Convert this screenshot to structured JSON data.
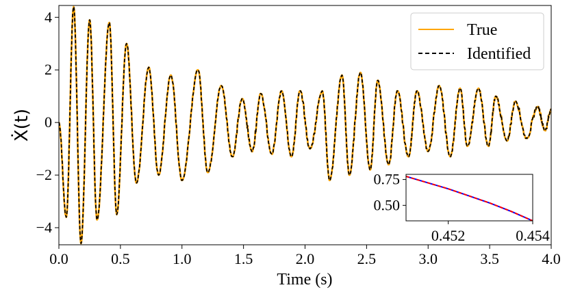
{
  "chart_data": {
    "type": "line",
    "title": "",
    "xlabel": "Time (s)",
    "ylabel": "Ẋ(t)",
    "xlim": [
      0.0,
      4.0
    ],
    "ylim": [
      -4.65,
      4.45
    ],
    "xticks": [
      0.0,
      0.5,
      1.0,
      1.5,
      2.0,
      2.5,
      3.0,
      3.5,
      4.0
    ],
    "xtick_labels": [
      "0.0",
      "0.5",
      "1.0",
      "1.5",
      "2.0",
      "2.5",
      "3.0",
      "3.5",
      "4.0"
    ],
    "yticks": [
      4,
      2,
      0,
      -2,
      -4
    ],
    "ytick_labels": [
      "4",
      "2",
      "0",
      "−2",
      "−4"
    ],
    "grid": false,
    "legend": {
      "placement": "top-right",
      "entries": [
        "True",
        "Identified"
      ]
    },
    "series": [
      {
        "name": "True",
        "color": "#ffa500",
        "style": "solid",
        "x": [
          0.0,
          0.06,
          0.12,
          0.18,
          0.25,
          0.31,
          0.41,
          0.47,
          0.55,
          0.63,
          0.73,
          0.81,
          0.91,
          1.0,
          1.13,
          1.21,
          1.32,
          1.41,
          1.49,
          1.57,
          1.64,
          1.73,
          1.81,
          1.89,
          1.96,
          2.04,
          2.14,
          2.2,
          2.3,
          2.36,
          2.45,
          2.53,
          2.59,
          2.68,
          2.75,
          2.84,
          2.91,
          3.0,
          3.09,
          3.18,
          3.26,
          3.32,
          3.41,
          3.49,
          3.55,
          3.64,
          3.71,
          3.8,
          3.89,
          3.95,
          4.0
        ],
        "y": [
          0.0,
          -3.6,
          4.4,
          -4.6,
          3.9,
          -3.7,
          3.8,
          -3.5,
          3.0,
          -2.3,
          2.1,
          -2.0,
          1.8,
          -2.2,
          2.0,
          -1.9,
          1.4,
          -1.3,
          0.9,
          -1.1,
          1.1,
          -1.2,
          1.2,
          -1.3,
          1.2,
          -1.0,
          1.2,
          -2.2,
          1.8,
          -2.0,
          1.9,
          -1.8,
          1.6,
          -1.6,
          1.2,
          -1.3,
          1.2,
          -1.1,
          1.4,
          -1.3,
          1.3,
          -0.9,
          1.3,
          -0.9,
          1.0,
          -0.7,
          0.8,
          -0.6,
          0.6,
          -0.3,
          0.5
        ]
      },
      {
        "name": "Identified",
        "color": "#000000",
        "style": "dashed",
        "x": [
          0.0,
          0.06,
          0.12,
          0.18,
          0.25,
          0.31,
          0.41,
          0.47,
          0.55,
          0.63,
          0.73,
          0.81,
          0.91,
          1.0,
          1.13,
          1.21,
          1.32,
          1.41,
          1.49,
          1.57,
          1.64,
          1.73,
          1.81,
          1.89,
          1.96,
          2.04,
          2.14,
          2.2,
          2.3,
          2.36,
          2.45,
          2.53,
          2.59,
          2.68,
          2.75,
          2.84,
          2.91,
          3.0,
          3.09,
          3.18,
          3.26,
          3.32,
          3.41,
          3.49,
          3.55,
          3.64,
          3.71,
          3.8,
          3.89,
          3.95,
          4.0
        ],
        "y": [
          0.0,
          -3.6,
          4.4,
          -4.6,
          3.9,
          -3.7,
          3.8,
          -3.5,
          3.0,
          -2.3,
          2.1,
          -2.0,
          1.8,
          -2.2,
          2.0,
          -1.9,
          1.4,
          -1.3,
          0.9,
          -1.1,
          1.1,
          -1.2,
          1.2,
          -1.3,
          1.2,
          -1.0,
          1.2,
          -2.2,
          1.8,
          -2.0,
          1.9,
          -1.8,
          1.6,
          -1.6,
          1.2,
          -1.3,
          1.2,
          -1.1,
          1.4,
          -1.3,
          1.3,
          -0.9,
          1.3,
          -0.9,
          1.0,
          -0.7,
          0.8,
          -0.6,
          0.6,
          -0.3,
          0.5
        ]
      }
    ],
    "inset": {
      "xlim": [
        0.451,
        0.454
      ],
      "ylim": [
        0.35,
        0.8
      ],
      "xticks": [
        0.452,
        0.454
      ],
      "xtick_labels": [
        "0.452",
        "0.454"
      ],
      "yticks": [
        0.75,
        0.5
      ],
      "ytick_labels": [
        "0.75",
        "0.50"
      ],
      "series": [
        {
          "color": "#0000ff",
          "style": "solid",
          "x": [
            0.451,
            0.4515,
            0.452,
            0.4525,
            0.453,
            0.4535,
            0.454
          ],
          "y": [
            0.78,
            0.72,
            0.66,
            0.59,
            0.52,
            0.44,
            0.35
          ]
        },
        {
          "color": "#ff0000",
          "style": "dashed",
          "x": [
            0.451,
            0.4515,
            0.452,
            0.4525,
            0.453,
            0.4535,
            0.454
          ],
          "y": [
            0.78,
            0.72,
            0.66,
            0.59,
            0.52,
            0.44,
            0.35
          ]
        }
      ]
    }
  }
}
